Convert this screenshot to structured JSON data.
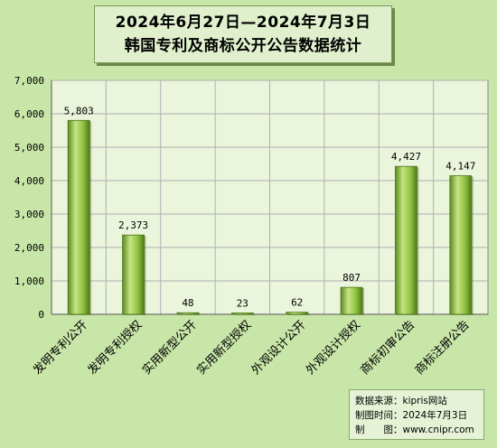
{
  "title": {
    "line1": "2024年6月27日—2024年7月3日",
    "line2": "韩国专利及商标公开公告数据统计"
  },
  "source": {
    "row1_label": "数据来源：",
    "row1_value": "kipris网站",
    "row2_label": "制图时间：",
    "row2_value": "2024年7月3日",
    "row3_label": "制　　图：",
    "row3_value": "www.cnipr.com"
  },
  "colors": {
    "bar_light": "#c2e07a",
    "bar_mid": "#8cbf3a",
    "bar_dark": "#4f7a1a",
    "plot_bg": "#eaf5dc",
    "grid": "#b0b0b0"
  },
  "chart_data": {
    "type": "bar",
    "categories": [
      "发明专利公开",
      "发明专利授权",
      "实用新型公开",
      "实用新型授权",
      "外观设计公开",
      "外观设计授权",
      "商标初审公告",
      "商标注册公告"
    ],
    "values": [
      5803,
      2373,
      48,
      23,
      62,
      807,
      4427,
      4147
    ],
    "value_labels": [
      "5,803",
      "2,373",
      "48",
      "23",
      "62",
      "807",
      "4,427",
      "4,147"
    ],
    "ylim": [
      0,
      7000
    ],
    "yticks": [
      0,
      1000,
      2000,
      3000,
      4000,
      5000,
      6000,
      7000
    ],
    "ytick_labels": [
      "0",
      "1,000",
      "2,000",
      "3,000",
      "4,000",
      "5,000",
      "6,000",
      "7,000"
    ],
    "grid": true
  }
}
